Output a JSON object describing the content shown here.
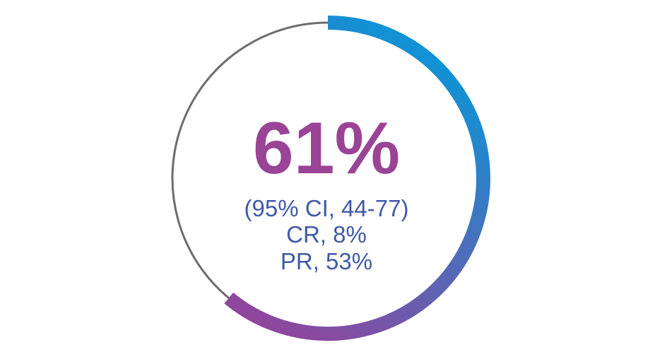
{
  "chart_data": {
    "type": "pie",
    "value_percent": 61,
    "remaining_percent": 39,
    "headline": "61%",
    "lines": [
      "(95% CI, 44-77)",
      "CR, 8%",
      "PR, 53%"
    ],
    "colors": {
      "arc_start": "#0897d8",
      "arc_end": "#9b3f98",
      "track": "#6d6d6d",
      "headline": "#9a4496",
      "sub_text": "#3f5aa6"
    }
  }
}
